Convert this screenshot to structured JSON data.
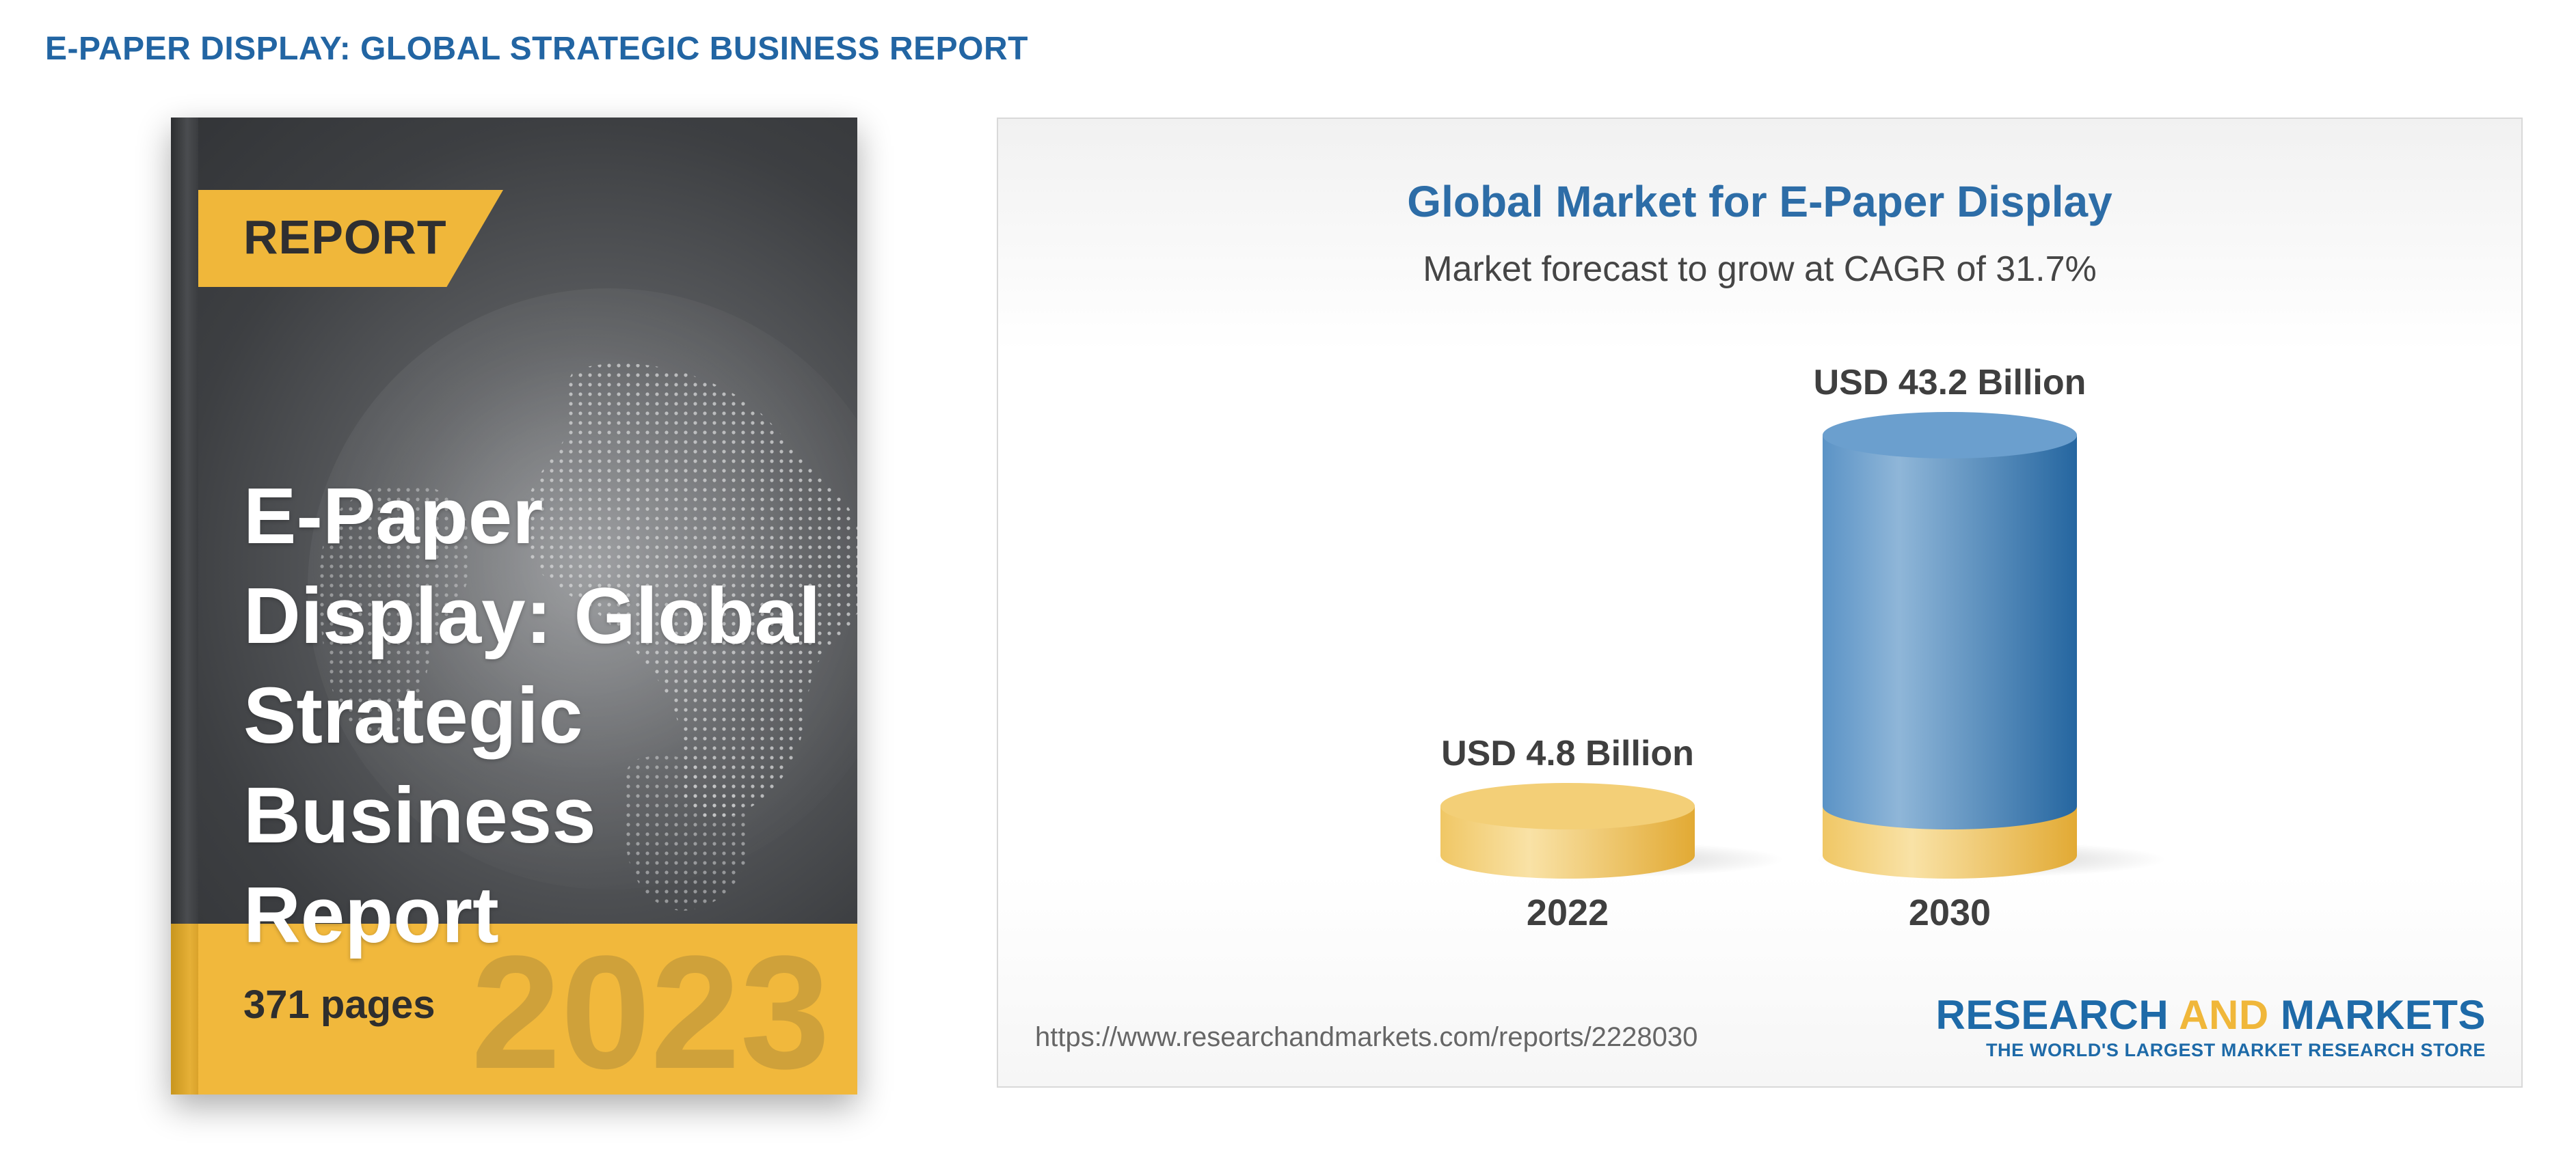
{
  "page": {
    "heading": "E-PAPER DISPLAY: GLOBAL STRATEGIC BUSINESS REPORT"
  },
  "cover": {
    "tag": "REPORT",
    "title": "E-Paper Display: Global Strategic Business Report",
    "pages": "371 pages",
    "year": "2023",
    "colors": {
      "dark": "#3d3f42",
      "accent": "#f1b83c"
    }
  },
  "chart_data": {
    "type": "bar",
    "title": "Global Market for E-Paper Display",
    "subtitle": "Market forecast to grow at CAGR of 31.7%",
    "categories": [
      "2022",
      "2030"
    ],
    "values": [
      4.8,
      43.2
    ],
    "unit": "USD Billion",
    "data_labels": [
      "USD 4.8 Billion",
      "USD 43.2 Billion"
    ],
    "xlabel": "",
    "ylabel": "",
    "ylim": [
      0,
      43.2
    ],
    "grid": false,
    "colors": {
      "base": "#f2c25a",
      "bar": "#4f8cc0"
    }
  },
  "footer": {
    "url": "https://www.researchandmarkets.com/reports/2228030",
    "brand_part1": "RESEARCH ",
    "brand_part2": "AND",
    "brand_part3": " MARKETS",
    "brand_tagline": "THE WORLD'S LARGEST MARKET RESEARCH STORE"
  }
}
